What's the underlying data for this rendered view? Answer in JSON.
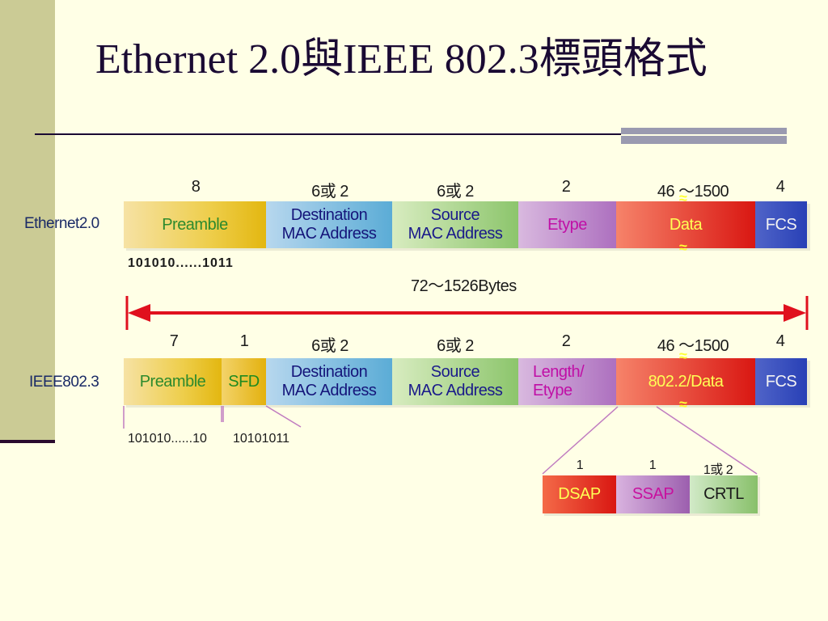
{
  "title": "Ethernet 2.0與IEEE 802.3標頭格式",
  "ethernet2": {
    "label": "Ethernet2.0",
    "sizes": [
      "8",
      "6或 2",
      "6或 2",
      "2",
      "46 ～1500",
      "4"
    ],
    "fields": {
      "preamble": "Preamble",
      "destination": "Destination\nMAC Address",
      "source": "Source\nMAC Address",
      "etype": "Etype",
      "data": "Data",
      "fcs": "FCS"
    },
    "preamble_bits": "101010......1011",
    "total_length": "72～1526Bytes"
  },
  "ieee8023": {
    "label": "IEEE802.3",
    "sizes": [
      "7",
      "1",
      "6或 2",
      "6或 2",
      "2",
      "46 ～1500",
      "4"
    ],
    "fields": {
      "preamble": "Preamble",
      "sfd": "SFD",
      "destination": "Destination\nMAC Address",
      "source": "Source\nMAC Address",
      "length_etype": "Length/\nEtype",
      "data": "802.2/Data",
      "fcs": "FCS"
    },
    "preamble_bits": "101010......10",
    "sfd_bits": "10101011"
  },
  "llc": {
    "sizes": [
      "1",
      "1",
      "1或 2"
    ],
    "fields": {
      "dsap": "DSAP",
      "ssap": "SSAP",
      "crtl": "CRTL"
    }
  },
  "colors": {
    "background": "#ffffe6",
    "sidebar": "#cbcb95",
    "arrow": "#e0101e",
    "title": "#1a0a33"
  }
}
